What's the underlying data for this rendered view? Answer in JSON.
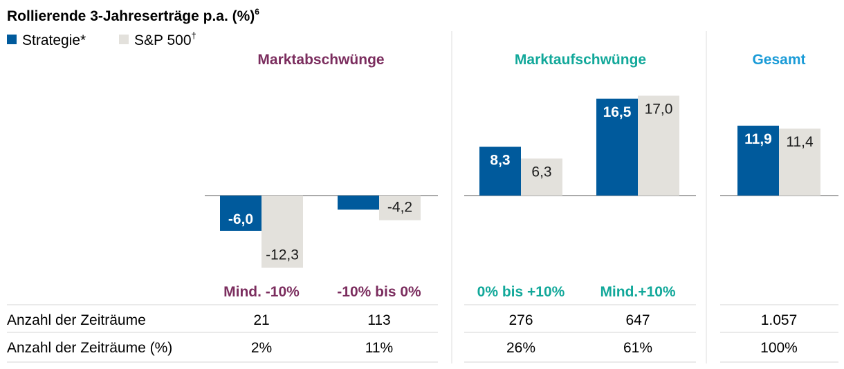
{
  "chart_data": {
    "type": "bar",
    "title": "Rollierende 3-Jahreserträge p.a. (%)",
    "title_superscript": "6",
    "legend": [
      {
        "name": "Strategie*",
        "color": "#005a9c"
      },
      {
        "name": "S&P 500",
        "superscript": "†",
        "color": "#e3e1dc"
      }
    ],
    "groups": [
      {
        "title": "Marktabschwünge",
        "color": "#7b2d5e",
        "categories": [
          0,
          1
        ]
      },
      {
        "title": "Marktaufschwünge",
        "color": "#12a89a",
        "categories": [
          2,
          3
        ]
      },
      {
        "title": "Gesamt",
        "color": "#1a9bd7",
        "categories": [
          4
        ]
      }
    ],
    "categories": [
      "Mind. -10%",
      "-10% bis 0%",
      "0% bis +10%",
      "Mind.+10%",
      ""
    ],
    "series": [
      {
        "name": "Strategie*",
        "values": [
          -6.0,
          -2.4,
          8.3,
          16.5,
          11.9
        ],
        "labels": [
          "-6,0",
          "-2,4",
          "8,3",
          "16,5",
          "11,9"
        ]
      },
      {
        "name": "S&P 500",
        "values": [
          -12.3,
          -4.2,
          6.3,
          17.0,
          11.4
        ],
        "labels": [
          "-12,3",
          "-4,2",
          "6,3",
          "17,0",
          "11,4"
        ]
      }
    ],
    "ylim": [
      -12.3,
      17.0
    ],
    "table": {
      "rows": [
        {
          "label": "Anzahl der Zeiträume",
          "values": [
            "21",
            "113",
            "276",
            "647",
            "1.057"
          ]
        },
        {
          "label": "Anzahl der Zeiträume (%)",
          "values": [
            "2%",
            "11%",
            "26%",
            "61%",
            "100%"
          ]
        }
      ]
    }
  }
}
